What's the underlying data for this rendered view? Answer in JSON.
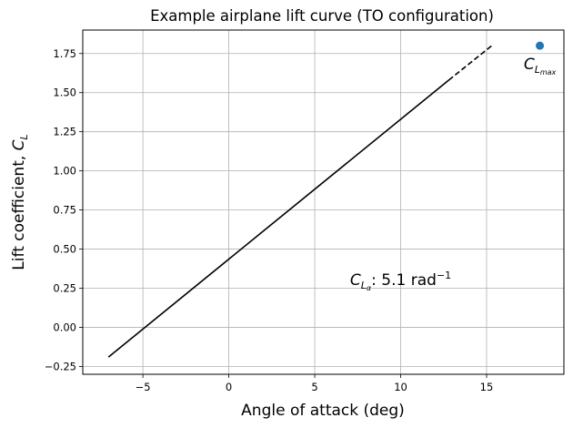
{
  "chart_data": {
    "type": "line",
    "title": "Example airplane lift curve (TO configuration)",
    "xlabel": "Angle of attack (deg)",
    "ylabel": {
      "main": "Lift coefficient, ",
      "var": "C",
      "sub": "L"
    },
    "xlim": [
      -8.5,
      19.5
    ],
    "ylim": [
      -0.3,
      1.9
    ],
    "xticks": [
      -5,
      0,
      5,
      10,
      15
    ],
    "xtick_labels": [
      "−5",
      "0",
      "5",
      "10",
      "15"
    ],
    "yticks": [
      -0.25,
      0.0,
      0.25,
      0.5,
      0.75,
      1.0,
      1.25,
      1.5,
      1.75
    ],
    "ytick_labels": [
      "−0.25",
      "0.00",
      "0.25",
      "0.50",
      "0.75",
      "1.00",
      "1.25",
      "1.50",
      "1.75"
    ],
    "grid": true,
    "series": [
      {
        "style": "solid",
        "color": "#000000",
        "x": [
          -7.0,
          12.8
        ],
        "y": [
          -0.19,
          1.58
        ]
      },
      {
        "style": "dashed",
        "color": "#000000",
        "x": [
          12.8,
          15.3
        ],
        "y": [
          1.58,
          1.8
        ]
      },
      {
        "style": "point",
        "color": "#1f77b4",
        "x": [
          18.1
        ],
        "y": [
          1.8
        ]
      }
    ],
    "annotations": [
      {
        "id": "clmax",
        "var": "C",
        "sub": "L",
        "subsub": "max",
        "x": 18.1,
        "y": 1.65
      },
      {
        "id": "cla",
        "var": "C",
        "sub": "L",
        "subsub": "α",
        "text": ": 5.1 rad",
        "sup": "−1",
        "x": 10.0,
        "y": 0.27
      }
    ]
  }
}
